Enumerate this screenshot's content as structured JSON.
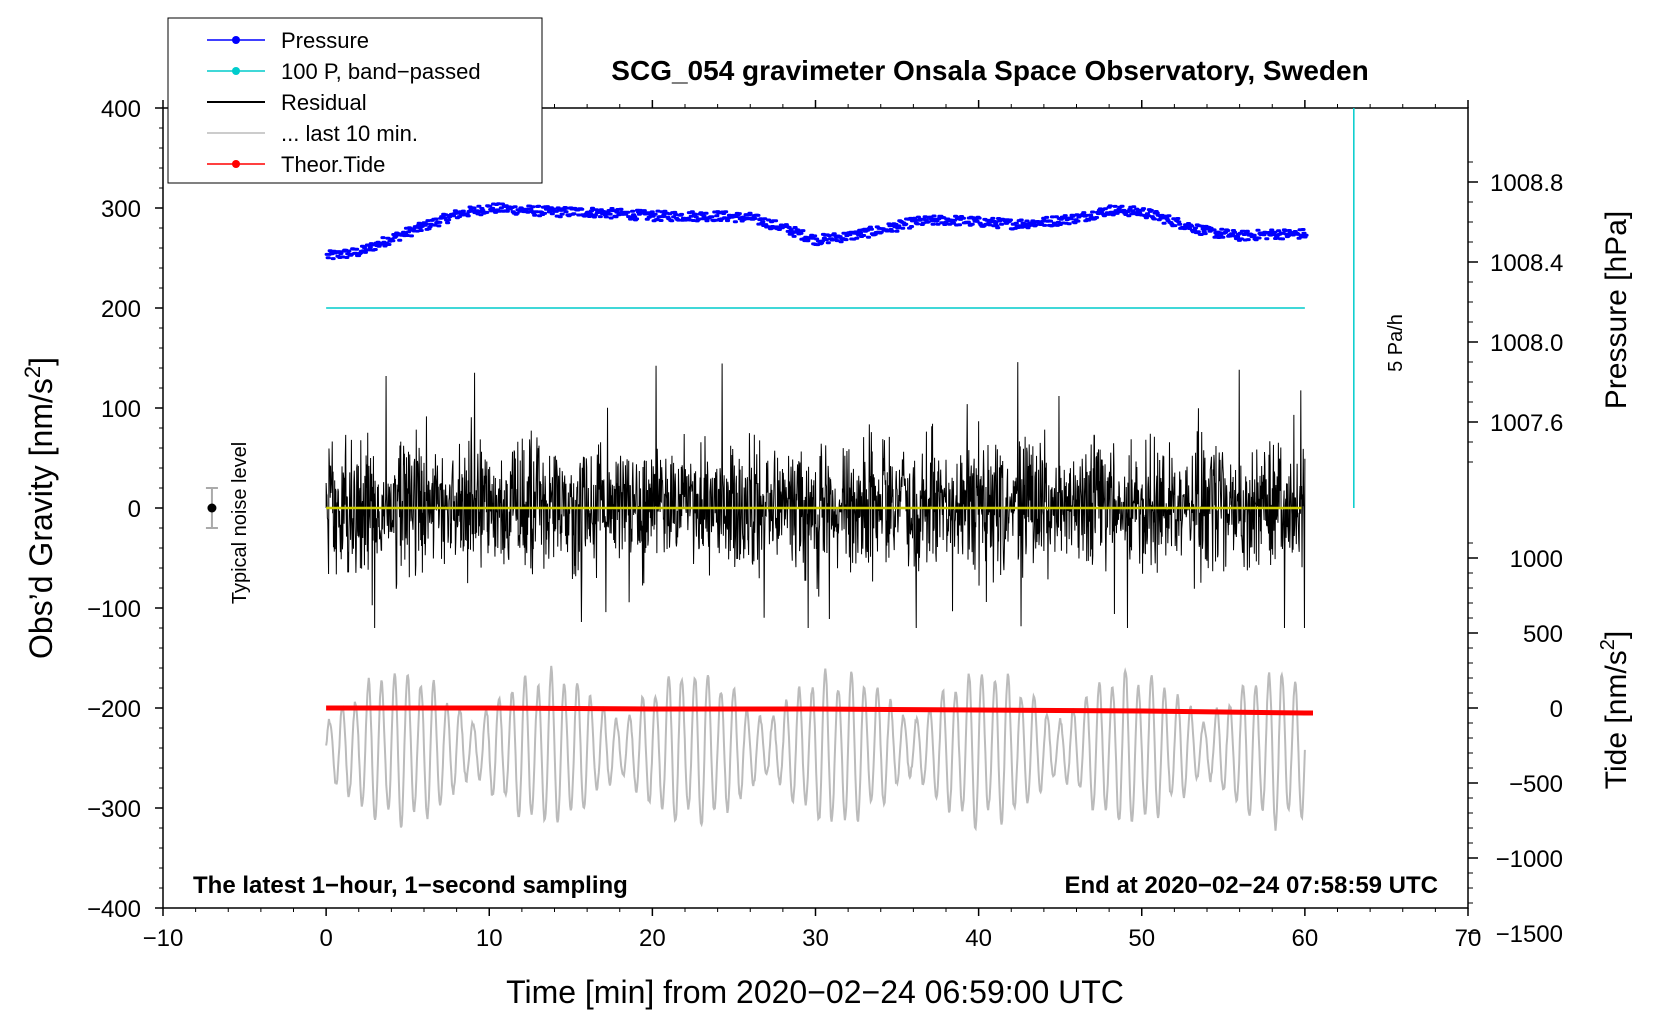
{
  "chart_data": {
    "type": "line",
    "title": "SCG_054 gravimeter Onsala Space Observatory, Sweden",
    "xlabel": "Time [min] from 2020−02−24 06:59:00 UTC",
    "ylabel_left": "Obs’d Gravity [nm/s",
    "ylabel_left_sup": "2",
    "ylabel_left_close": "]",
    "ylabel_pressure": "Pressure [hPa]",
    "ylabel_tide": "Tide [nm/s",
    "ylabel_tide_sup": "2",
    "ylabel_tide_close": "]",
    "xlim": [
      -10,
      70
    ],
    "ylim": [
      -400,
      400
    ],
    "x_ticks": [
      -10,
      0,
      10,
      20,
      30,
      40,
      50,
      60,
      70
    ],
    "x_tick_labels": [
      "−10",
      "0",
      "10",
      "20",
      "30",
      "40",
      "50",
      "60",
      "70"
    ],
    "y_ticks": [
      -400,
      -300,
      -200,
      -100,
      0,
      100,
      200,
      300,
      400
    ],
    "y_tick_labels": [
      "−400",
      "−300",
      "−200",
      "−100",
      "0",
      "100",
      "200",
      "300",
      "400"
    ],
    "pressure_ticks": [
      1007.6,
      1008.0,
      1008.4,
      1008.8
    ],
    "pressure_tick_labels": [
      "1007.6",
      "1008.0",
      "1008.4",
      "1008.8"
    ],
    "pressure_map": {
      "value_at_y0": 1007.17,
      "nm_s2_per_hPa": 200
    },
    "tide_ticks": [
      -1500,
      -1000,
      -500,
      0,
      500,
      1000
    ],
    "tide_tick_labels": [
      "−1500",
      "−1000",
      "−500",
      "0",
      "500",
      "1000"
    ],
    "tide_map": {
      "value_at_y_minus200": 0,
      "nm_s2_per_tide_unit": 0.15
    },
    "legend": {
      "position": "top-left",
      "entries": [
        {
          "label": "Pressure",
          "color": "#0000ff",
          "marker": true
        },
        {
          "label": "100 P, band−passed",
          "color": "#00cccc",
          "marker": true
        },
        {
          "label": "Residual",
          "color": "#000000",
          "marker": false
        },
        {
          "label": "... last 10 min.",
          "color": "#bbbbbb",
          "marker": false
        },
        {
          "label": "Theor.Tide",
          "color": "#ff0000",
          "marker": true
        }
      ]
    },
    "series": [
      {
        "name": "Pressure",
        "color": "#0000ff",
        "x": [
          0,
          2,
          4,
          6,
          8,
          10,
          12,
          14,
          16,
          18,
          20,
          22,
          24,
          26,
          28,
          30,
          32,
          34,
          36,
          38,
          40,
          42,
          44,
          46,
          48,
          50,
          52,
          54,
          56,
          58,
          60
        ],
        "values": [
          1008.43,
          1008.45,
          1008.52,
          1008.58,
          1008.64,
          1008.67,
          1008.66,
          1008.65,
          1008.65,
          1008.64,
          1008.63,
          1008.63,
          1008.63,
          1008.62,
          1008.57,
          1008.51,
          1008.53,
          1008.56,
          1008.6,
          1008.61,
          1008.6,
          1008.59,
          1008.6,
          1008.62,
          1008.66,
          1008.65,
          1008.6,
          1008.55,
          1008.53,
          1008.54,
          1008.54
        ]
      },
      {
        "name": "100 P, band−passed",
        "color": "#00cccc",
        "x": [
          0,
          60
        ],
        "values": [
          200,
          200
        ]
      },
      {
        "name": "Residual",
        "color": "#000000",
        "x": [
          0,
          60
        ],
        "envelope": [
          -120,
          155
        ],
        "baseline": 0
      },
      {
        "name": "Residual mean",
        "color": "#cccc00",
        "x": [
          0,
          59.8
        ],
        "values": [
          0,
          0
        ]
      },
      {
        "name": "... last 10 min.",
        "color": "#bbbbbb",
        "x": [
          0,
          60
        ],
        "envelope": [
          -350,
          -130
        ],
        "baseline": -240
      },
      {
        "name": "Theor.Tide",
        "color": "#ff0000",
        "x": [
          0,
          10,
          20,
          30,
          40,
          50,
          60
        ],
        "values": [
          -200,
          -200,
          -201,
          -201,
          -202,
          -203,
          -205
        ]
      }
    ],
    "pa_rate": {
      "label": "5 Pa/h",
      "x": 63,
      "from": 0,
      "to": 400
    },
    "noise": {
      "label": "Typical noise level",
      "x": -7,
      "value": 0,
      "err": 20
    },
    "annotations": {
      "bottom_left": "The latest 1−hour, 1−second sampling",
      "bottom_right": "End at 2020−02−24 07:58:59 UTC"
    }
  }
}
